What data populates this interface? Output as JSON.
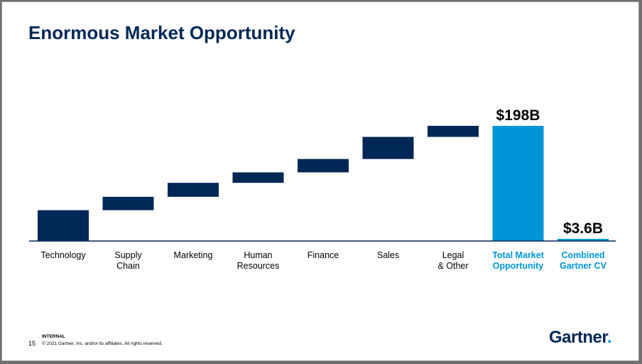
{
  "slide": {
    "title": "Enormous Market Opportunity",
    "page_number": "15",
    "classification": "INTERNAL",
    "copyright": "© 2021 Gartner, Inc. and/or its affiliates. All rights reserved.",
    "logo_text": "Gartner",
    "logo_dot": "."
  },
  "colors": {
    "navy": "#002856",
    "blue": "#0096d6",
    "axis": "#002856"
  },
  "chart_data": {
    "type": "bar",
    "subtype": "waterfall",
    "title": "",
    "xlabel": "",
    "ylabel": "",
    "ylim": [
      0,
      198
    ],
    "categories": [
      [
        "Technology"
      ],
      [
        "Supply",
        "Chain"
      ],
      [
        "Marketing"
      ],
      [
        "Human",
        "Resources"
      ],
      [
        "Finance"
      ],
      [
        "Sales"
      ],
      [
        "Legal",
        "& Other"
      ],
      [
        "Total Market",
        "Opportunity"
      ],
      [
        "Combined",
        "Gartner CV"
      ]
    ],
    "segments": [
      {
        "start": 0,
        "end": 53
      },
      {
        "start": 53,
        "end": 76
      },
      {
        "start": 76,
        "end": 100
      },
      {
        "start": 100,
        "end": 118
      },
      {
        "start": 118,
        "end": 141
      },
      {
        "start": 141,
        "end": 179
      },
      {
        "start": 179,
        "end": 198
      },
      {
        "start": 0,
        "end": 198
      },
      {
        "start": 0,
        "end": 3.6
      }
    ],
    "highlight": [
      false,
      false,
      false,
      false,
      false,
      false,
      false,
      true,
      true
    ],
    "data_labels": [
      "",
      "",
      "",
      "",
      "",
      "",
      "",
      "$198B",
      "$3.6B"
    ]
  }
}
